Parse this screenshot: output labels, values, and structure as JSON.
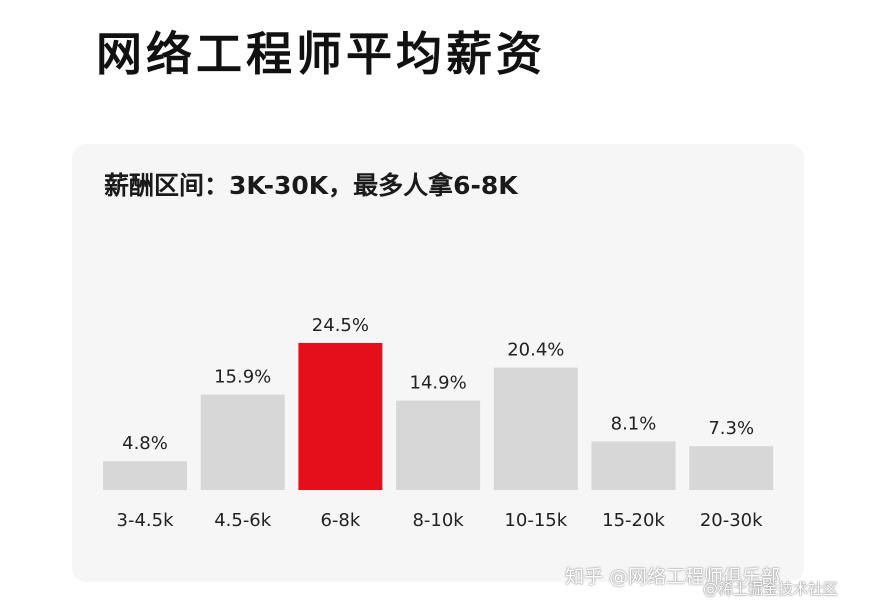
{
  "page": {
    "title": "网络工程师平均薪资"
  },
  "chart_data": {
    "type": "bar",
    "title": "薪酬区间：3K-30K，最多人拿6-8K",
    "categories": [
      "3-4.5k",
      "4.5-6k",
      "6-8k",
      "8-10k",
      "10-15k",
      "15-20k",
      "20-30k"
    ],
    "values": [
      4.8,
      15.9,
      24.5,
      14.9,
      20.4,
      8.1,
      7.3
    ],
    "value_labels": [
      "4.8%",
      "15.9%",
      "24.5%",
      "14.9%",
      "20.4%",
      "8.1%",
      "7.3%"
    ],
    "unit": "%",
    "highlight_index": 2,
    "colors": {
      "bar": "#d7d7d7",
      "highlight": "#e50f1c",
      "label": "#222222",
      "card": "#f6f6f6"
    },
    "ylim": [
      0,
      24.5
    ],
    "grid": false,
    "legend": "none"
  },
  "watermark": {
    "text": "知乎 @网络工程师俱乐部",
    "text2": "@稀土掘金技术社区"
  }
}
